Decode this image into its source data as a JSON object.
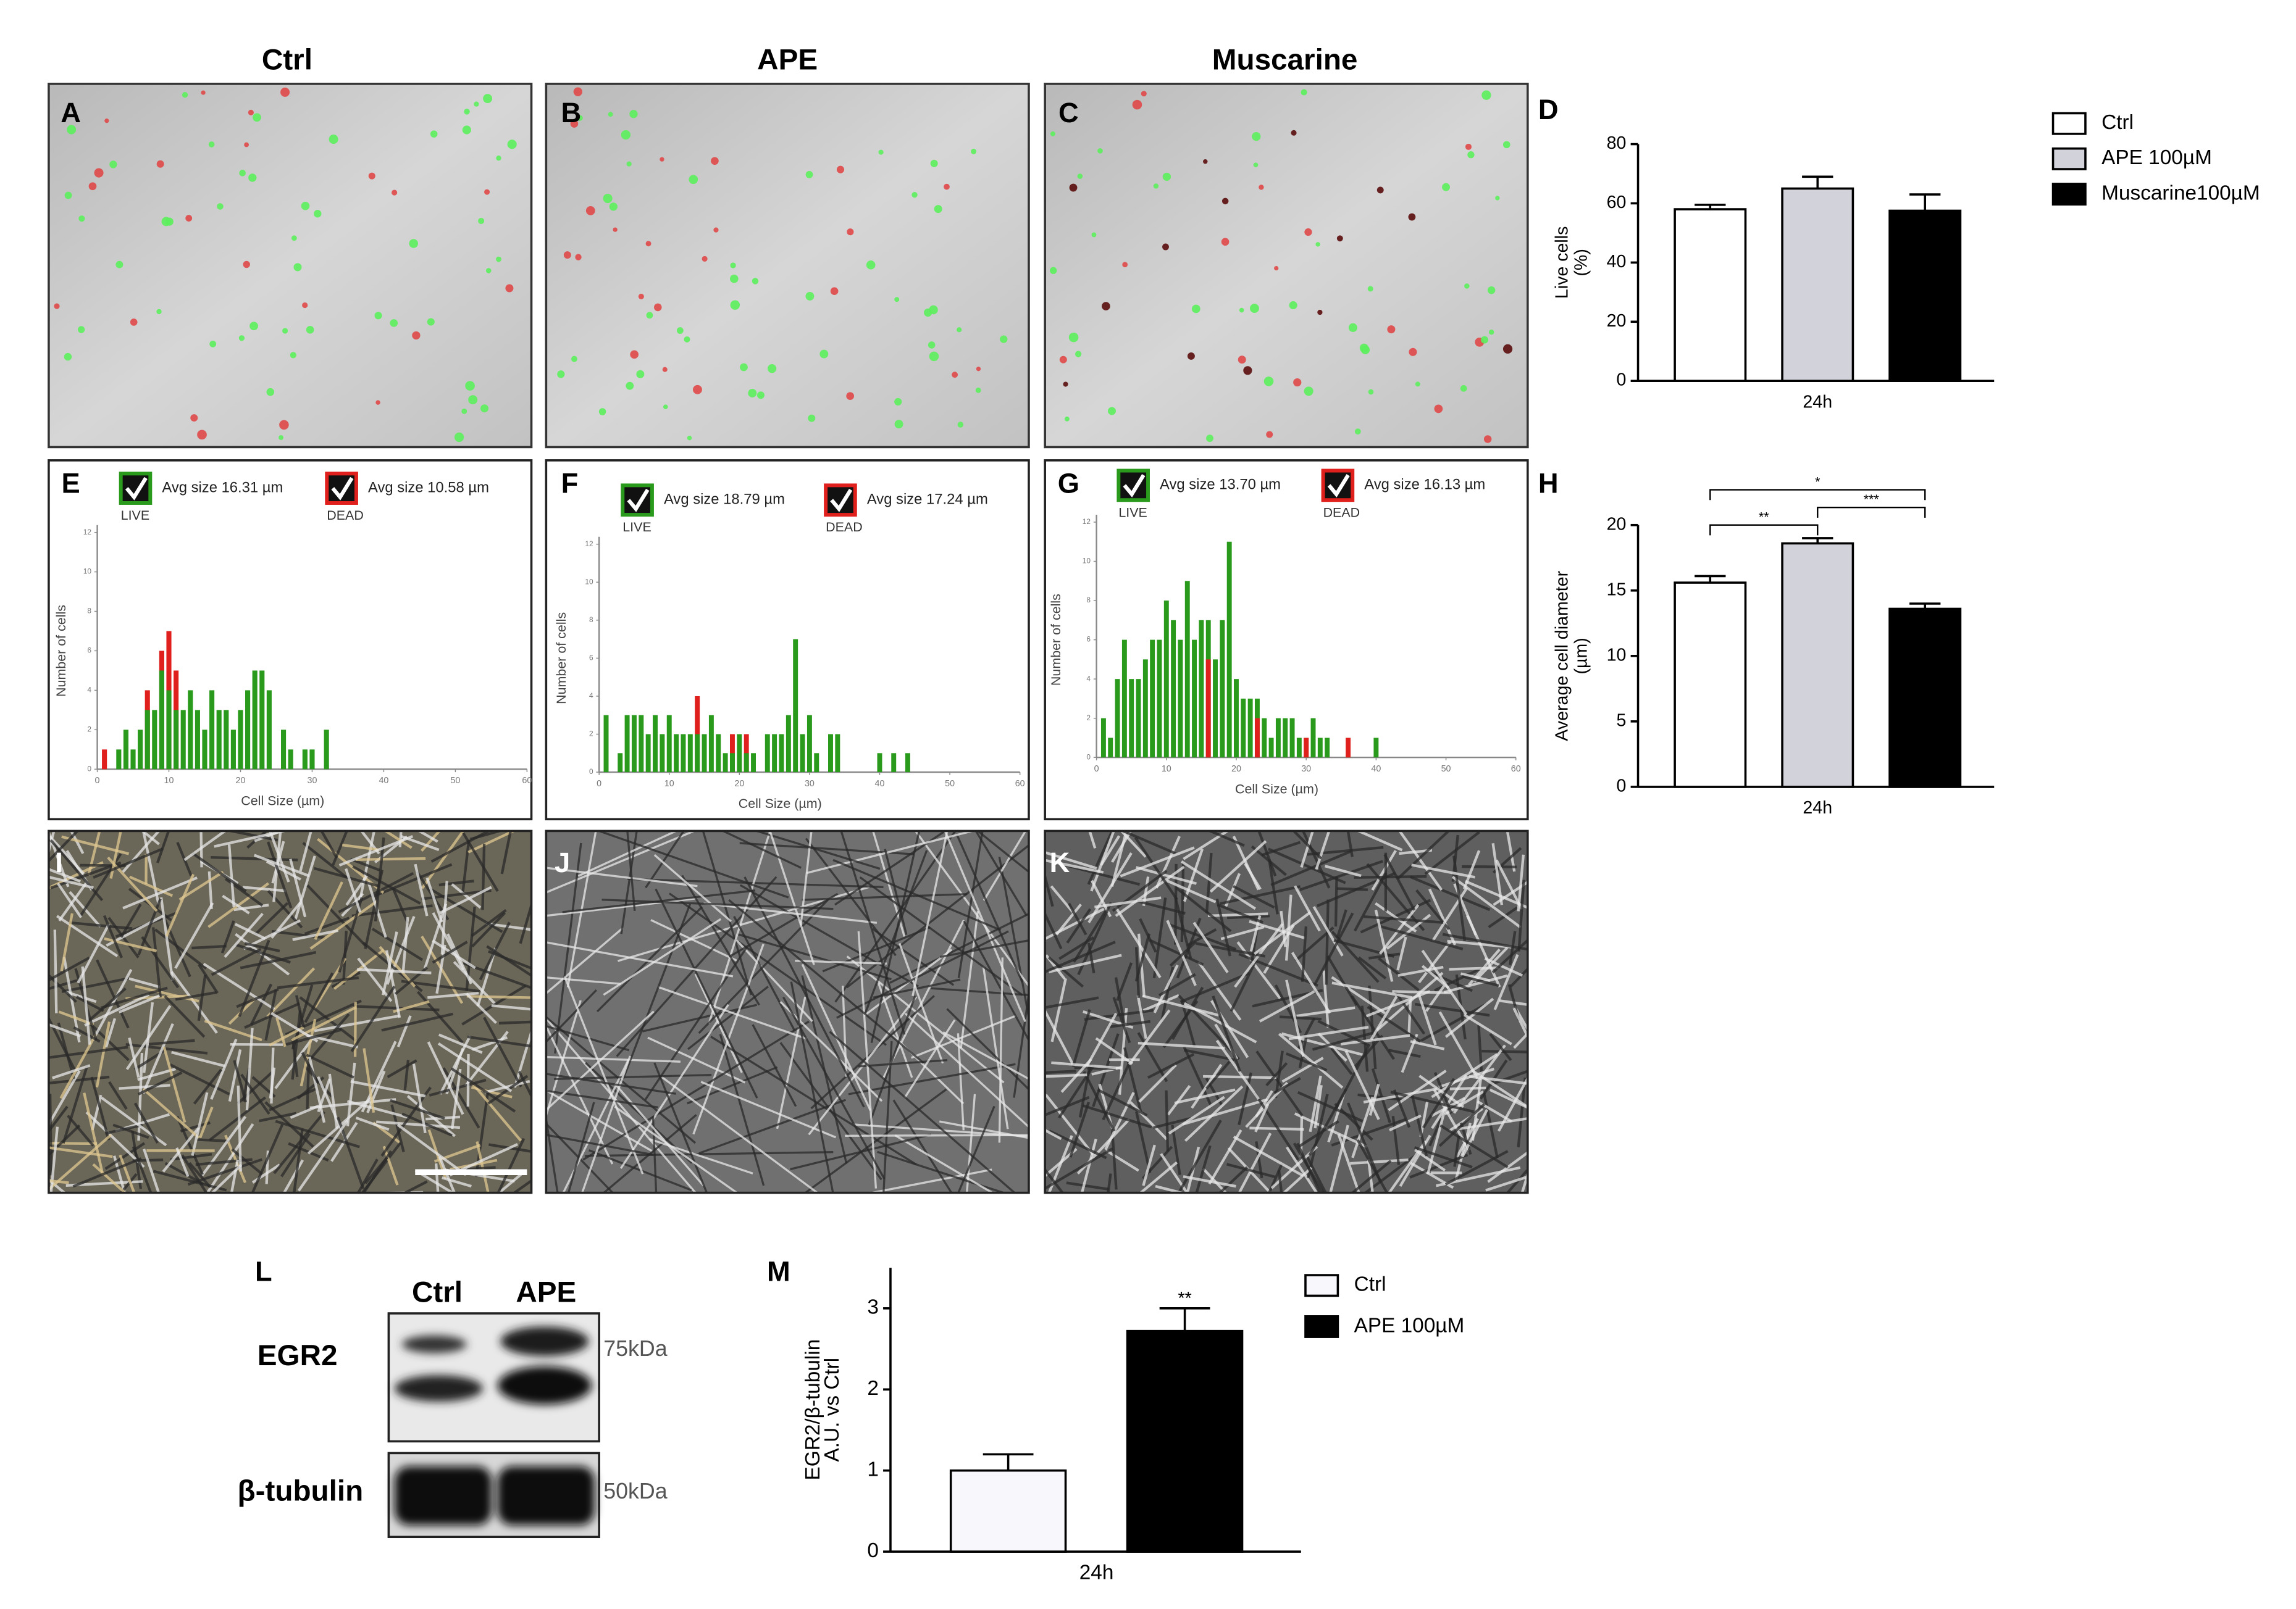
{
  "figure": {
    "columns": [
      "Ctrl",
      "APE",
      "Muscarine"
    ],
    "panel_letters": [
      "A",
      "B",
      "C",
      "D",
      "E",
      "F",
      "G",
      "H",
      "I",
      "J",
      "K",
      "L",
      "M"
    ],
    "blot": {
      "lanes": [
        "Ctrl",
        "APE"
      ],
      "rows": [
        "EGR2",
        "β-tubulin"
      ],
      "markers": [
        "75kDa",
        "50kDa"
      ]
    }
  },
  "chart_data": [
    {
      "type": "bar",
      "categories": [
        "24h"
      ],
      "ylabel": [
        "Live cells",
        "(%)"
      ],
      "ylim": [
        0,
        80
      ],
      "yticks": [
        0,
        20,
        40,
        60,
        80
      ],
      "legend": "right",
      "series": [
        {
          "name": "Ctrl",
          "color": "#ffffff",
          "values": [
            58
          ],
          "errors": [
            1.5
          ]
        },
        {
          "name": "APE 100µM",
          "color": "#d2d3da",
          "values": [
            65
          ],
          "errors": [
            4
          ]
        },
        {
          "name": "Muscarine100µM",
          "color": "#000000",
          "values": [
            57.5
          ],
          "errors": [
            5.5
          ]
        }
      ]
    },
    {
      "type": "bar",
      "categories": [
        "24h"
      ],
      "ylabel": [
        "Average cell diameter",
        "(µm)"
      ],
      "ylim": [
        0,
        20
      ],
      "yticks": [
        0,
        5,
        10,
        15,
        20
      ],
      "series": [
        {
          "color": "#ffffff",
          "values": [
            15.6
          ],
          "errors": [
            0.5
          ]
        },
        {
          "color": "#d2d3da",
          "values": [
            18.6
          ],
          "errors": [
            0.4
          ]
        },
        {
          "color": "#000000",
          "values": [
            13.6
          ],
          "errors": [
            0.4
          ]
        }
      ],
      "significance": [
        {
          "label": "**",
          "between": [
            0,
            1
          ]
        },
        {
          "label": "*",
          "between": [
            0,
            2
          ]
        },
        {
          "label": "***",
          "between": [
            1,
            2
          ]
        }
      ]
    },
    {
      "type": "histogram",
      "xlabel": "Cell Size (µm)",
      "ylabel": "Number of cells",
      "xlim": [
        0,
        60
      ],
      "xticks": [
        0,
        10,
        20,
        30,
        40,
        50,
        60
      ],
      "ylim": [
        0,
        12
      ],
      "yticks": [
        0,
        2,
        4,
        6,
        8,
        10,
        12
      ],
      "x": [
        1,
        3,
        4,
        5,
        6,
        7,
        8,
        9,
        10,
        11,
        12,
        13,
        14,
        15,
        16,
        17,
        18,
        19,
        20,
        21,
        22,
        23,
        24,
        26,
        27,
        29,
        30,
        32
      ],
      "series": [
        {
          "name": "LIVE",
          "avg_label": "Avg size 16.31 µm",
          "color": "#2a9a1c",
          "values": [
            0,
            1,
            2,
            1,
            2,
            3,
            3,
            5,
            4,
            3,
            3,
            4,
            3,
            2,
            4,
            3,
            3,
            2,
            3,
            4,
            5,
            5,
            4,
            2,
            1,
            1,
            1,
            2
          ]
        },
        {
          "name": "DEAD",
          "avg_label": "Avg size 10.58 µm",
          "color": "#e0201c",
          "values": [
            1,
            0,
            0,
            0,
            0,
            4,
            0,
            6,
            7,
            5,
            0,
            0,
            0,
            0,
            0,
            0,
            0,
            0,
            0,
            0,
            0,
            0,
            0,
            0,
            0,
            0,
            0,
            0
          ]
        }
      ]
    },
    {
      "type": "histogram",
      "xlabel": "Cell Size (µm)",
      "ylabel": "Number of cells",
      "xlim": [
        0,
        60
      ],
      "xticks": [
        0,
        10,
        20,
        30,
        40,
        50,
        60
      ],
      "ylim": [
        0,
        12
      ],
      "yticks": [
        0,
        2,
        4,
        6,
        8,
        10,
        12
      ],
      "x": [
        1,
        3,
        4,
        5,
        6,
        7,
        8,
        9,
        10,
        11,
        12,
        13,
        14,
        15,
        16,
        17,
        18,
        19,
        20,
        21,
        22,
        24,
        25,
        26,
        27,
        28,
        29,
        30,
        31,
        33,
        34,
        40,
        42,
        44
      ],
      "series": [
        {
          "name": "LIVE",
          "avg_label": "Avg size 18.79 µm",
          "color": "#2a9a1c",
          "values": [
            3,
            1,
            3,
            3,
            3,
            2,
            3,
            2,
            3,
            2,
            2,
            2,
            2,
            2,
            3,
            2,
            1,
            1,
            2,
            1,
            1,
            2,
            2,
            2,
            3,
            7,
            2,
            3,
            1,
            2,
            2,
            1,
            1,
            1
          ]
        },
        {
          "name": "DEAD",
          "avg_label": "Avg size 17.24 µm",
          "color": "#e0201c",
          "values": [
            0,
            0,
            0,
            0,
            0,
            0,
            0,
            0,
            0,
            0,
            0,
            0,
            4,
            0,
            0,
            0,
            0,
            2,
            0,
            2,
            0,
            0,
            0,
            0,
            0,
            0,
            0,
            0,
            0,
            0,
            0,
            0,
            0,
            0
          ]
        }
      ]
    },
    {
      "type": "histogram",
      "xlabel": "Cell Size (µm)",
      "ylabel": "Number of cells",
      "xlim": [
        0,
        60
      ],
      "xticks": [
        0,
        10,
        20,
        30,
        40,
        50,
        60
      ],
      "ylim": [
        0,
        12
      ],
      "yticks": [
        0,
        2,
        4,
        6,
        8,
        10,
        12
      ],
      "x": [
        1,
        2,
        3,
        4,
        5,
        6,
        7,
        8,
        9,
        10,
        11,
        12,
        13,
        14,
        15,
        16,
        17,
        18,
        19,
        20,
        21,
        22,
        23,
        24,
        25,
        26,
        27,
        28,
        29,
        30,
        31,
        32,
        33,
        36,
        40
      ],
      "series": [
        {
          "name": "LIVE",
          "avg_label": "Avg size 13.70 µm",
          "color": "#2a9a1c",
          "values": [
            2,
            1,
            4,
            6,
            4,
            4,
            5,
            6,
            6,
            8,
            7,
            6,
            9,
            6,
            7,
            7,
            5,
            7,
            11,
            4,
            3,
            3,
            3,
            2,
            1,
            2,
            2,
            2,
            1,
            1,
            2,
            1,
            1,
            0,
            1
          ]
        },
        {
          "name": "DEAD",
          "avg_label": "Avg size 16.13 µm",
          "color": "#e0201c",
          "values": [
            0,
            0,
            0,
            0,
            0,
            0,
            0,
            0,
            0,
            0,
            0,
            0,
            0,
            0,
            0,
            5,
            0,
            0,
            0,
            0,
            0,
            0,
            2,
            0,
            0,
            0,
            0,
            0,
            0,
            1,
            0,
            0,
            0,
            1,
            0
          ]
        }
      ]
    },
    {
      "type": "bar",
      "categories": [
        "24h"
      ],
      "ylabel": [
        "EGR2/β-tubulin",
        "A.U. vs Ctrl"
      ],
      "ylim": [
        0,
        3.5
      ],
      "yticks": [
        0,
        1,
        2,
        3
      ],
      "legend": "right",
      "series": [
        {
          "name": "Ctrl",
          "color": "#f8f8fc",
          "values": [
            1.0
          ],
          "errors": [
            0.2
          ]
        },
        {
          "name": "APE 100µM",
          "color": "#000000",
          "values": [
            2.72
          ],
          "errors": [
            0.28
          ],
          "sig_label": "**"
        }
      ]
    }
  ]
}
